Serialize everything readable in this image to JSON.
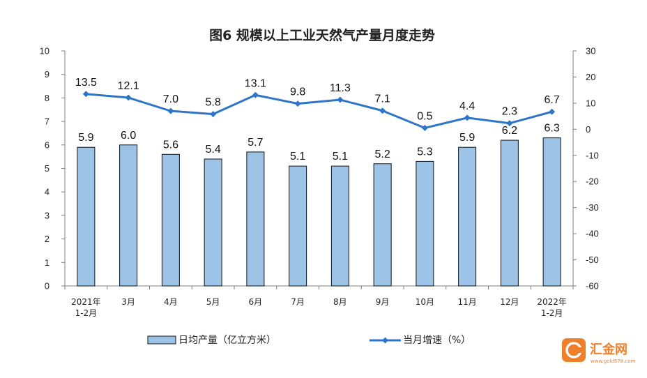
{
  "chart_data": {
    "type": "bar",
    "title": "图6  规模以上工业天然气产量月度走势",
    "categories": [
      [
        "2021年",
        "1-2月"
      ],
      [
        "3月"
      ],
      [
        "4月"
      ],
      [
        "5月"
      ],
      [
        "6月"
      ],
      [
        "7月"
      ],
      [
        "8月"
      ],
      [
        "9月"
      ],
      [
        "10月"
      ],
      [
        "11月"
      ],
      [
        "12月"
      ],
      [
        "2022年",
        "1-2月"
      ]
    ],
    "series": [
      {
        "name": "日均产量（亿立方米）",
        "type": "bar",
        "axis": "left",
        "color": "#9DC3E6",
        "values": [
          5.9,
          6.0,
          5.6,
          5.4,
          5.7,
          5.1,
          5.1,
          5.2,
          5.3,
          5.9,
          6.2,
          6.3
        ],
        "labels": [
          "5.9",
          "6.0",
          "5.6",
          "5.4",
          "5.7",
          "5.1",
          "5.1",
          "5.2",
          "5.3",
          "5.9",
          "6.2",
          "6.3"
        ]
      },
      {
        "name": "当月增速（%）",
        "type": "line",
        "axis": "right",
        "color": "#2E75C8",
        "values": [
          13.5,
          12.1,
          7.0,
          5.8,
          13.1,
          9.8,
          11.3,
          7.1,
          0.5,
          4.4,
          2.3,
          6.7
        ],
        "labels": [
          "13.5",
          "12.1",
          "7.0",
          "5.8",
          "13.1",
          "9.8",
          "11.3",
          "7.1",
          "0.5",
          "4.4",
          "2.3",
          "6.7"
        ]
      }
    ],
    "ylim_left": [
      0,
      10
    ],
    "yticks_left": [
      "0",
      "1",
      "2",
      "3",
      "4",
      "5",
      "6",
      "7",
      "8",
      "9",
      "10"
    ],
    "ylim_right": [
      -60,
      30
    ],
    "yticks_right": [
      "-60",
      "-50",
      "-40",
      "-30",
      "-20",
      "-10",
      "0",
      "10",
      "20",
      "30"
    ],
    "grid": false,
    "legend_position": "bottom"
  },
  "watermark": {
    "brand": "汇金网",
    "url": "www.gold678.com",
    "color": "#F07F2A"
  }
}
